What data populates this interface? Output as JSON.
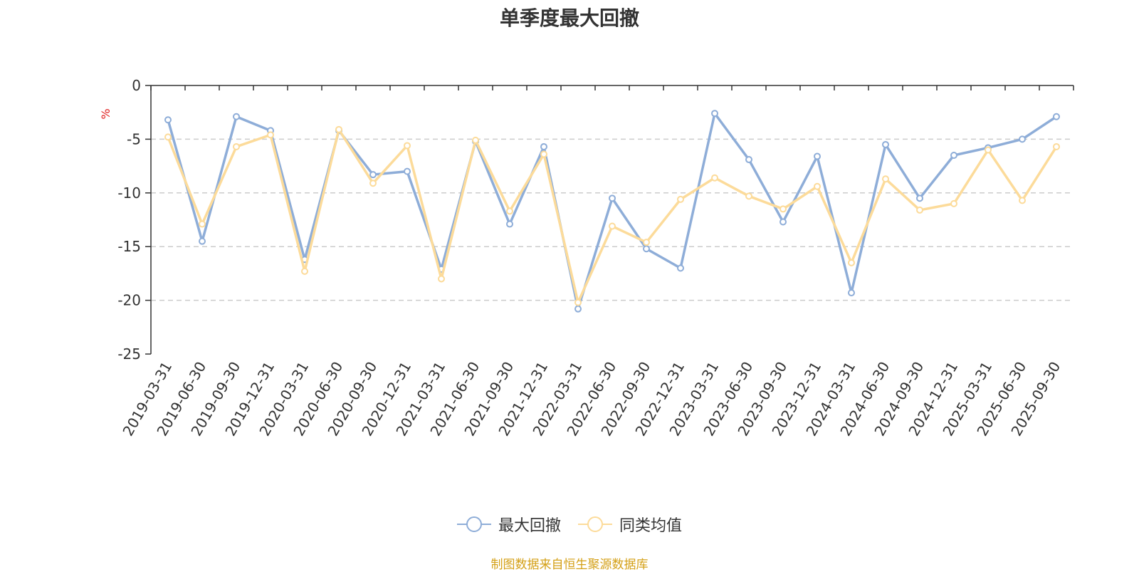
{
  "chart_data": {
    "type": "line",
    "title": "单季度最大回撤",
    "ylabel": "%",
    "xlabel": "",
    "ylim": [
      -25,
      0
    ],
    "yticks": [
      0,
      -5,
      -10,
      -15,
      -20,
      -25
    ],
    "grid": true,
    "legend_position": "bottom",
    "categories": [
      "2019-03-31",
      "2019-06-30",
      "2019-09-30",
      "2019-12-31",
      "2020-03-31",
      "2020-06-30",
      "2020-09-30",
      "2020-12-31",
      "2021-03-31",
      "2021-06-30",
      "2021-09-30",
      "2021-12-31",
      "2022-03-31",
      "2022-06-30",
      "2022-09-30",
      "2022-12-31",
      "2023-03-31",
      "2023-06-30",
      "2023-09-30",
      "2023-12-31",
      "2024-03-31",
      "2024-06-30",
      "2024-09-30",
      "2024-12-31",
      "2025-03-31",
      "2025-06-30",
      "2025-09-30"
    ],
    "series": [
      {
        "name": "最大回撤",
        "color": "#8eadd8",
        "values": [
          -3.2,
          -14.5,
          -2.9,
          -4.2,
          -16.2,
          -4.2,
          -8.3,
          -8.0,
          -17.1,
          -5.2,
          -12.9,
          -5.7,
          -20.8,
          -10.5,
          -15.2,
          -17.0,
          -2.6,
          -6.9,
          -12.7,
          -6.6,
          -19.3,
          -5.5,
          -10.5,
          -6.5,
          -5.8,
          -5.0,
          -2.9
        ]
      },
      {
        "name": "同类均值",
        "color": "#fcdb9a",
        "values": [
          -4.8,
          -12.9,
          -5.7,
          -4.6,
          -17.3,
          -4.1,
          -9.1,
          -5.6,
          -18.0,
          -5.1,
          -11.7,
          -6.4,
          -20.2,
          -13.1,
          -14.6,
          -10.6,
          -8.6,
          -10.3,
          -11.5,
          -9.4,
          -16.5,
          -8.7,
          -11.6,
          -11.0,
          -6.0,
          -10.7,
          -5.7
        ]
      }
    ]
  },
  "source_text": "制图数据来自恒生聚源数据库"
}
